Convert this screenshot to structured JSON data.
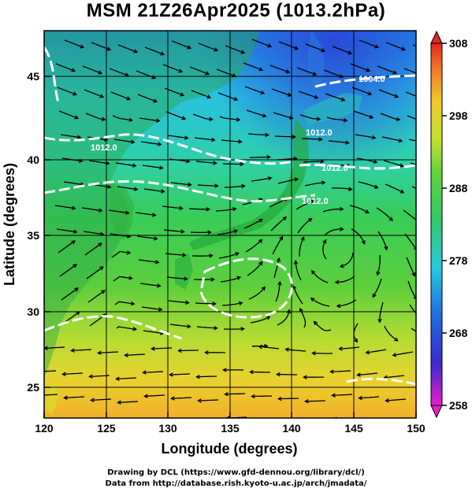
{
  "title": "MSM 21Z26Apr2025 (1013.2hPa)",
  "xaxis": {
    "label": "Longitude (degrees)",
    "ticks": [
      "120",
      "125",
      "130",
      "135",
      "140",
      "145",
      "150"
    ]
  },
  "yaxis": {
    "label": "Latitude  (degrees)",
    "ticks": [
      "25",
      "30",
      "35",
      "40",
      "45"
    ]
  },
  "colorbar": {
    "ticks": [
      "308",
      "298",
      "288",
      "278",
      "268",
      "258"
    ],
    "min": 258,
    "max": 308
  },
  "isobar_labels": [
    "1012.0",
    "1012.0",
    "1012.0",
    "1012.0",
    "1004.0"
  ],
  "credits": {
    "line1": "Drawing by DCL (https://www.gfd-dennou.org/library/dcl/)",
    "line2": "Data from http://database.rish.kyoto-u.ac.jp/arch/jmadata/"
  },
  "colors": {
    "cold": "#1e6fe0",
    "cyan": "#22d2d8",
    "green": "#35c94a",
    "yellow": "#d8e030",
    "orange": "#f0a428",
    "land": "#2a8a2a",
    "isobar": "#ffffff"
  }
}
